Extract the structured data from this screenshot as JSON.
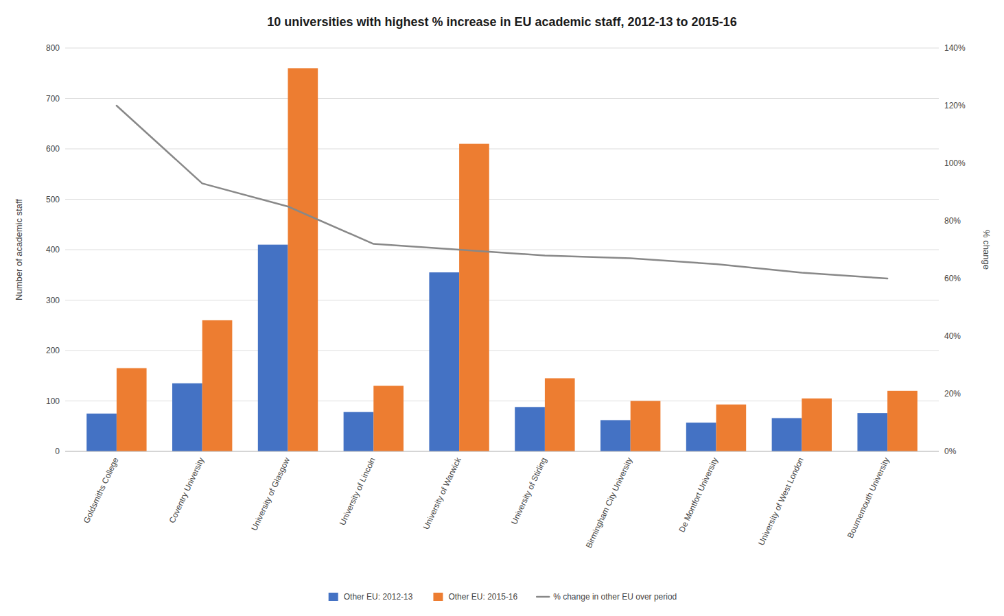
{
  "chart_data": {
    "type": "bar",
    "title": "10 universities with highest % increase in EU academic staff, 2012-13 to 2015-16",
    "categories": [
      "Goldsmiths College",
      "Coventry University",
      "University of Glasgow",
      "University of Lincoln",
      "University of Warwick",
      "University of Stirling",
      "Birmingham City University",
      "De Montfort University",
      "University of West London",
      "Bournemouth University"
    ],
    "series": [
      {
        "name": "Other EU: 2012-13",
        "color": "#4472C4",
        "values": [
          75,
          135,
          410,
          78,
          355,
          88,
          62,
          57,
          66,
          76
        ]
      },
      {
        "name": "Other EU: 2015-16",
        "color": "#ED7D31",
        "values": [
          165,
          260,
          760,
          130,
          610,
          145,
          100,
          93,
          105,
          120
        ]
      },
      {
        "name": "% change in other EU over period",
        "type": "line",
        "axis": "y2",
        "color": "#888888",
        "values": [
          1.2,
          0.93,
          0.85,
          0.72,
          0.7,
          0.68,
          0.67,
          0.65,
          0.62,
          0.6
        ]
      }
    ],
    "y_label": "Number of academic staff",
    "y2_label": "% change",
    "ylim": [
      0,
      800
    ],
    "yticks": [
      0,
      100,
      200,
      300,
      400,
      500,
      600,
      700,
      800
    ],
    "y2lim": [
      0,
      1.4
    ],
    "y2ticks": [
      {
        "value": 0.0,
        "label": "0%"
      },
      {
        "value": 0.2,
        "label": "20%"
      },
      {
        "value": 0.4,
        "label": "40%"
      },
      {
        "value": 0.6,
        "label": "60%"
      },
      {
        "value": 0.8,
        "label": "80%"
      },
      {
        "value": 1.0,
        "label": "100%"
      },
      {
        "value": 1.2,
        "label": "120%"
      },
      {
        "value": 1.4,
        "label": "140%"
      }
    ],
    "grid": true,
    "legend": "bottom"
  }
}
